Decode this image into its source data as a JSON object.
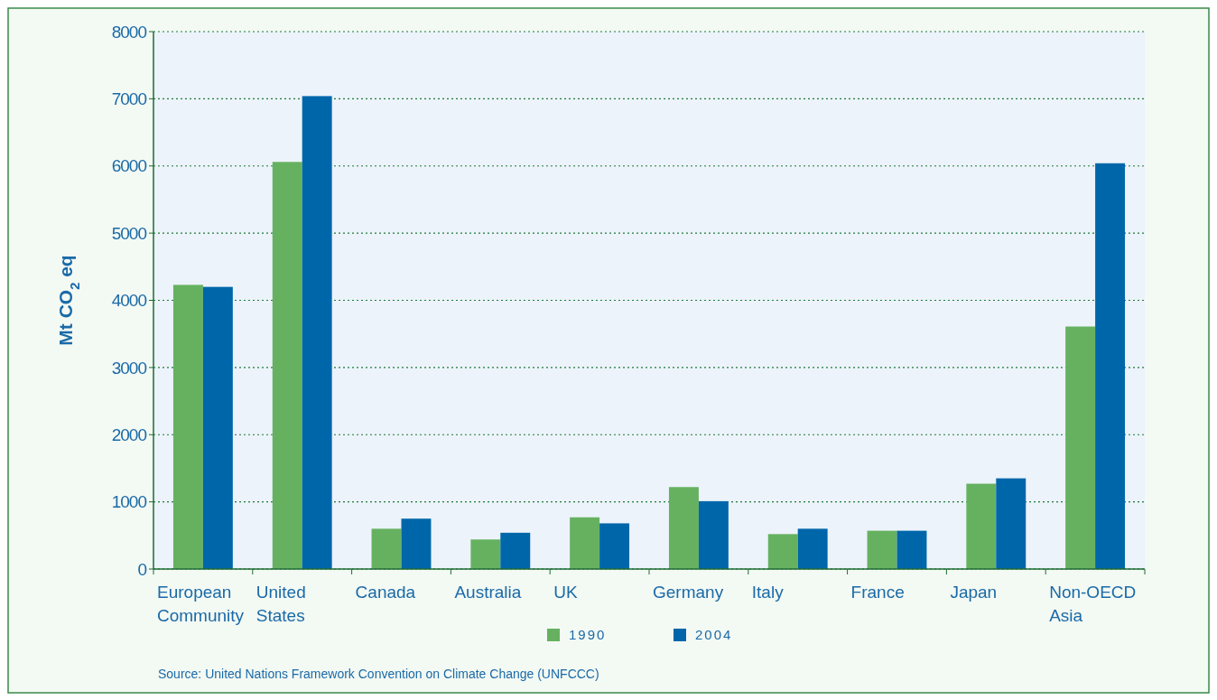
{
  "chart_data": {
    "type": "bar",
    "ylabel": "Mt CO$_{2}$ eq",
    "categories": [
      "European\nCommunity",
      "United\nStates",
      "Canada",
      "Australia",
      "UK",
      "Germany",
      "Italy",
      "France",
      "Japan",
      "Non-OECD\nAsia"
    ],
    "series": [
      {
        "name": "1990",
        "color": "#66b160",
        "values": [
          4230,
          6060,
          600,
          440,
          770,
          1220,
          520,
          570,
          1270,
          3610
        ]
      },
      {
        "name": "2004",
        "color": "#0066aa",
        "values": [
          4200,
          7040,
          750,
          540,
          680,
          1010,
          600,
          570,
          1350,
          6040
        ]
      }
    ],
    "ylim": [
      0,
      8000
    ],
    "yticks": [
      0,
      1000,
      2000,
      3000,
      4000,
      5000,
      6000,
      7000,
      8000
    ],
    "grid": "y",
    "legend": "bottom",
    "annotations": [
      "Source: United Nations Framework Convention on Climate Change (UNFCCC)"
    ]
  }
}
